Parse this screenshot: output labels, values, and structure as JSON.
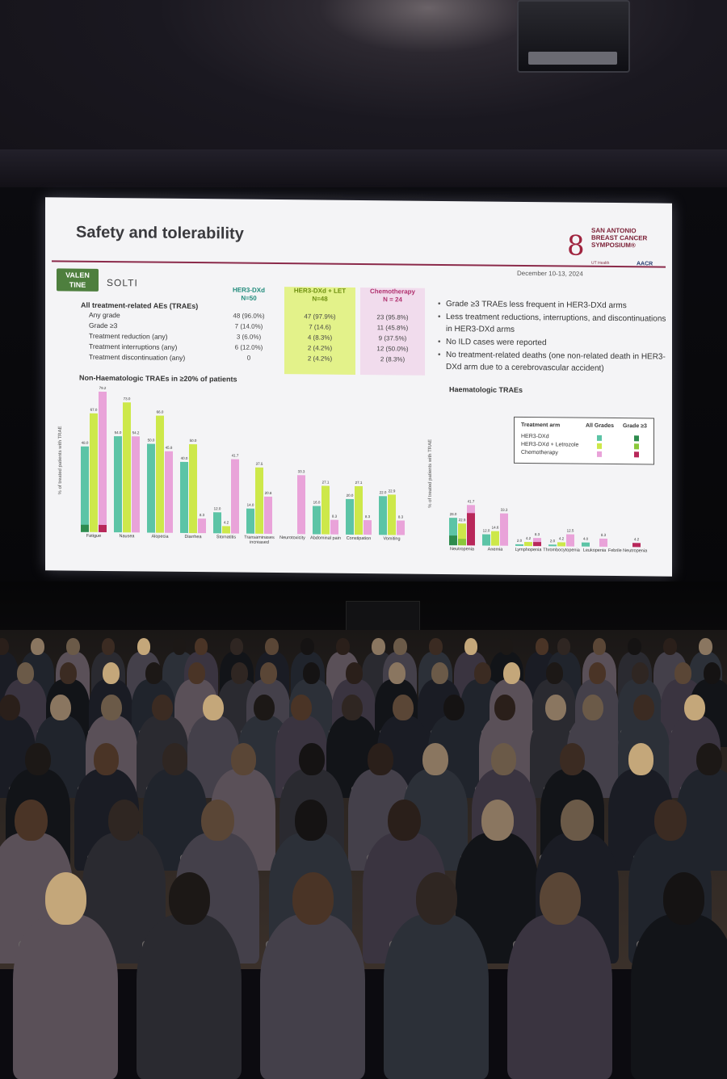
{
  "slide": {
    "title": "Safety and tolerability",
    "date": "December 10-13, 2024",
    "conference_logo": {
      "line1": "SAN ANTONIO",
      "line2": "BREAST CANCER",
      "line3": "SYMPOSIUM®",
      "sub": "UT Health",
      "aacr": "AACR"
    },
    "trial_logo": {
      "line1": "VALEN",
      "line2": "TINE"
    },
    "partner_logo": "SOLTI",
    "table": {
      "title": "All treatment-related AEs (TRAEs)",
      "columns": [
        {
          "name": "HER3-DXd",
          "n": "N=50",
          "color": "#1f8a7a",
          "band": ""
        },
        {
          "name": "HER3-DXd + LET",
          "n": "N=48",
          "color": "#6e8f10",
          "band": "#e3f28a"
        },
        {
          "name": "Chemotherapy",
          "n": "N = 24",
          "color": "#b0306e",
          "band": "#f1dced"
        }
      ],
      "rows": [
        {
          "label": "Any grade",
          "values": [
            "48 (96.0%)",
            "47 (97.9%)",
            "23 (95.8%)"
          ]
        },
        {
          "label": "Grade ≥3",
          "values": [
            "7 (14.0%)",
            "7 (14.6)",
            "11 (45.8%)"
          ]
        },
        {
          "label": "Treatment reduction (any)",
          "values": [
            "3 (6.0%)",
            "4 (8.3%)",
            "9 (37.5%)"
          ]
        },
        {
          "label": "Treatment interruptions (any)",
          "values": [
            "6 (12.0%)",
            "2 (4.2%)",
            "12 (50.0%)"
          ]
        },
        {
          "label": "Treatment discontinuation (any)",
          "values": [
            "0",
            "2 (4.2%)",
            "2 (8.3%)"
          ]
        }
      ]
    },
    "bullets": [
      "Grade ≥3 TRAEs less frequent in HER3-DXd arms",
      "Less treatment reductions, interruptions, and discontinuations in HER3-DXd arms",
      "No ILD cases were reported",
      "No treatment-related deaths (one non-related death in HER3-DXd arm due to a cerebrovascular accident)"
    ],
    "legend": {
      "head_arm": "Treatment arm",
      "head_all": "All Grades",
      "head_g3": "Grade ≥3",
      "rows": [
        "HER3-DXd",
        "HER3-DXd + Letrozole",
        "Chemotherapy"
      ]
    },
    "colors": {
      "her3": "#5cc4a6",
      "her3_g3": "#2e8b4e",
      "let": "#cde84a",
      "let_g3": "#8ac83a",
      "chemo": "#e9a3d9",
      "chemo_g3": "#b8285a"
    }
  },
  "chart_data": [
    {
      "type": "bar",
      "title": "Non-Haematologic TRAEs in ≥20% of patients",
      "ylabel": "% of treated patients with TRAE",
      "ylim": [
        0,
        80
      ],
      "categories": [
        "Fatigue",
        "Nausea",
        "Alopecia",
        "Diarrhea",
        "Stomatitis",
        "Transaminases increased",
        "Neurotoxicity",
        "Abdominal pain",
        "Constipation",
        "Vomiting"
      ],
      "series": [
        {
          "name": "HER3-DXd",
          "values": [
            48.0,
            54.0,
            50.0,
            40.0,
            12.0,
            14.0,
            0,
            16.0,
            20.0,
            22.0
          ]
        },
        {
          "name": "HER3-DXd + Letrozole",
          "values": [
            67.0,
            73.0,
            66.0,
            50.0,
            4.2,
            37.5,
            0,
            27.1,
            27.1,
            22.9
          ]
        },
        {
          "name": "Chemotherapy",
          "values": [
            79.2,
            54.2,
            45.8,
            8.3,
            41.7,
            20.8,
            33.3,
            8.3,
            8.3,
            8.3
          ]
        }
      ],
      "grade3": [
        {
          "name": "HER3-DXd",
          "values": [
            4.0,
            0,
            0,
            0,
            0,
            0,
            0,
            0,
            0,
            0
          ]
        },
        {
          "name": "HER3-DXd + Letrozole",
          "values": [
            0,
            0,
            0,
            0,
            0,
            0,
            0,
            0,
            0,
            0
          ]
        },
        {
          "name": "Chemotherapy",
          "values": [
            4.2,
            0,
            0,
            0,
            0,
            0,
            0,
            0,
            0,
            0
          ]
        }
      ]
    },
    {
      "type": "bar",
      "title": "Haematologic TRAEs",
      "ylabel": "% of treated patients with TRAE",
      "ylim": [
        0,
        80
      ],
      "categories": [
        "Neutropenia",
        "Anemia",
        "Lymphopenia",
        "Thrombocytopenia",
        "Leukopenia",
        "Febrile Neutropenia"
      ],
      "series": [
        {
          "name": "HER3-DXd",
          "values": [
            28.0,
            12.0,
            2.0,
            2.0,
            4.0,
            0
          ]
        },
        {
          "name": "HER3-DXd + Letrozole",
          "values": [
            22.9,
            14.6,
            4.2,
            4.2,
            0,
            0
          ]
        },
        {
          "name": "Chemotherapy",
          "values": [
            41.7,
            33.3,
            8.3,
            12.5,
            8.3,
            4.2
          ]
        }
      ],
      "grade3": [
        {
          "name": "HER3-DXd",
          "values": [
            10.0,
            0,
            0,
            0,
            0,
            0
          ]
        },
        {
          "name": "HER3-DXd + Letrozole",
          "values": [
            6.3,
            0,
            0,
            0,
            0,
            0
          ]
        },
        {
          "name": "Chemotherapy",
          "values": [
            33.3,
            0,
            4.2,
            0,
            0,
            4.2
          ]
        }
      ]
    }
  ]
}
